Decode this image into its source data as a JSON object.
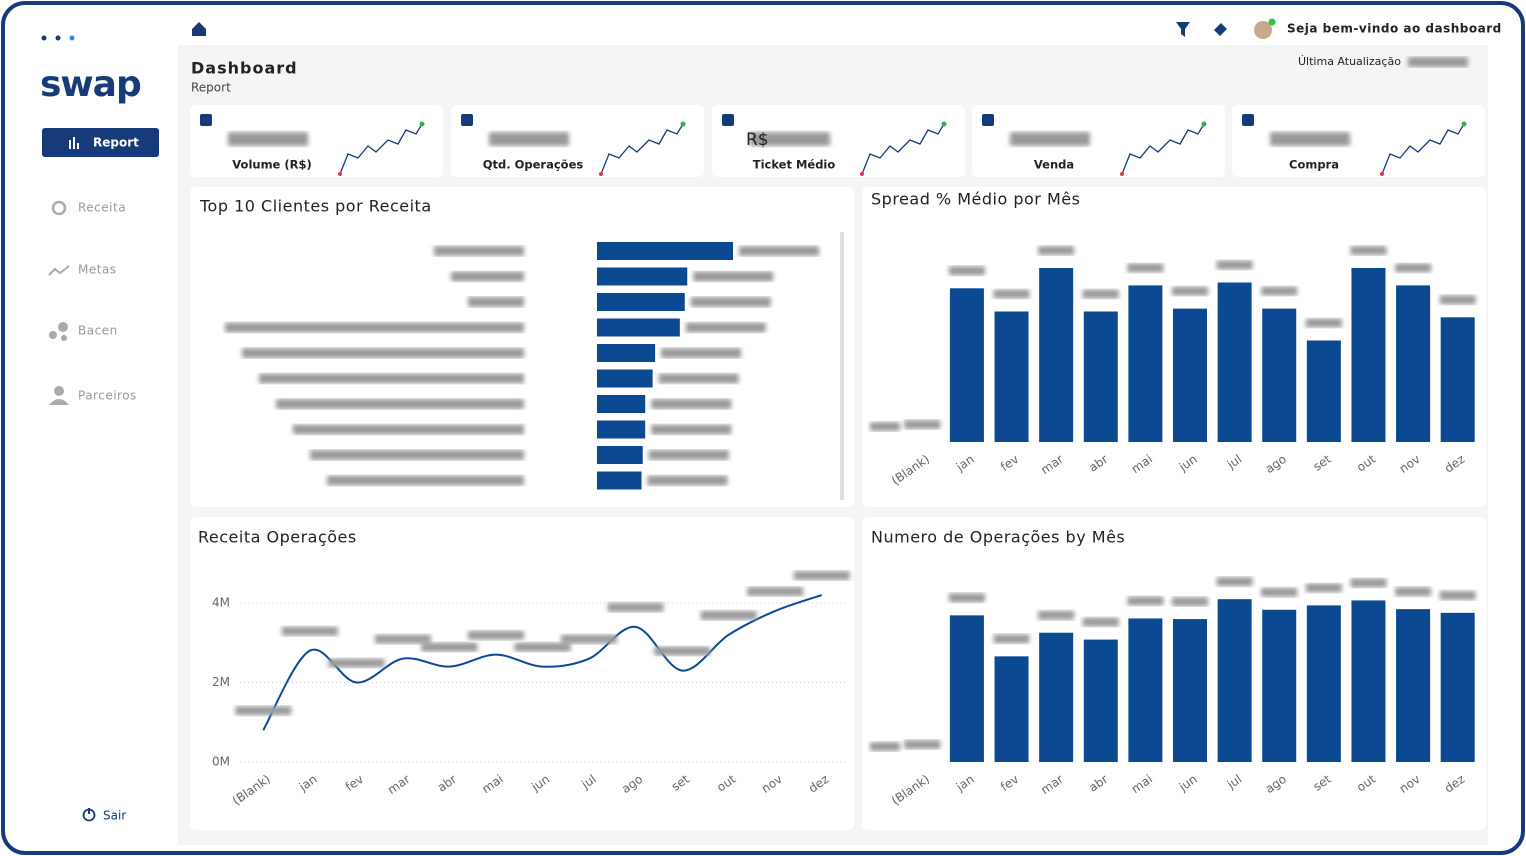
{
  "sidebar": {
    "logo": "swap",
    "menu": [
      "Report",
      "Receita",
      "Metas",
      "Bacen",
      "Parceiros"
    ],
    "logout": "Sair"
  },
  "header": {
    "title": "Dashboard",
    "subtitle": "Report",
    "welcome": "Seja bem-vindo ao dashboard",
    "last_update": "Última Atualização"
  },
  "kpis": [
    {
      "label": "Volume (R$)"
    },
    {
      "label": "Qtd. Operações"
    },
    {
      "label": "Ticket Médio",
      "prefix": "R$"
    },
    {
      "label": "Venda"
    },
    {
      "label": "Compra"
    }
  ],
  "chart_data": [
    {
      "type": "bar",
      "horizontal": true,
      "title": "Top 10 Clientes por Receita",
      "categories": [
        null,
        null,
        null,
        null,
        null,
        null,
        null,
        null,
        null,
        null
      ],
      "values": [
        11.0,
        7.3,
        7.1,
        6.7,
        4.7,
        4.5,
        3.9,
        3.9,
        3.7,
        3.6
      ],
      "xlim": [
        0,
        11
      ],
      "color": "#0b4a93"
    },
    {
      "type": "bar",
      "title": "Spread % Médio por Mês",
      "categories": [
        "(Blank)",
        "jan",
        "fev",
        "mar",
        "abr",
        "mai",
        "jun",
        "jul",
        "ago",
        "set",
        "out",
        "nov",
        "dez"
      ],
      "values": [
        0,
        0.53,
        0.45,
        0.6,
        0.45,
        0.54,
        0.46,
        0.55,
        0.46,
        0.35,
        0.6,
        0.54,
        0.43
      ],
      "ylim": [
        0,
        0.6
      ],
      "color": "#0b4a93"
    },
    {
      "type": "line",
      "title": "Receita Operações",
      "categories": [
        "(Blank)",
        "jan",
        "fev",
        "mar",
        "abr",
        "mai",
        "jun",
        "jul",
        "ago",
        "set",
        "out",
        "nov",
        "dez"
      ],
      "values": [
        800000,
        2800000,
        2000000,
        2600000,
        2400000,
        2700000,
        2400000,
        2600000,
        3400000,
        2300000,
        3200000,
        3800000,
        4200000
      ],
      "ylim": [
        0,
        4000000
      ],
      "yticks": [
        {
          "value": 0,
          "label": "0M"
        },
        {
          "value": 2000000,
          "label": "2M"
        },
        {
          "value": 4000000,
          "label": "4M"
        }
      ],
      "grid": true,
      "color": "#0b4a93"
    },
    {
      "type": "bar",
      "title": "Numero de Operações by Mês",
      "categories": [
        "(Blank)",
        "jan",
        "fev",
        "mar",
        "abr",
        "mai",
        "jun",
        "jul",
        "ago",
        "set",
        "out",
        "nov",
        "dez"
      ],
      "values": [
        0,
        2360,
        1700,
        2080,
        1970,
        2310,
        2300,
        2620,
        2450,
        2520,
        2600,
        2460,
        2400
      ],
      "ylim": [
        0,
        2800
      ],
      "color": "#0b4a93"
    }
  ]
}
